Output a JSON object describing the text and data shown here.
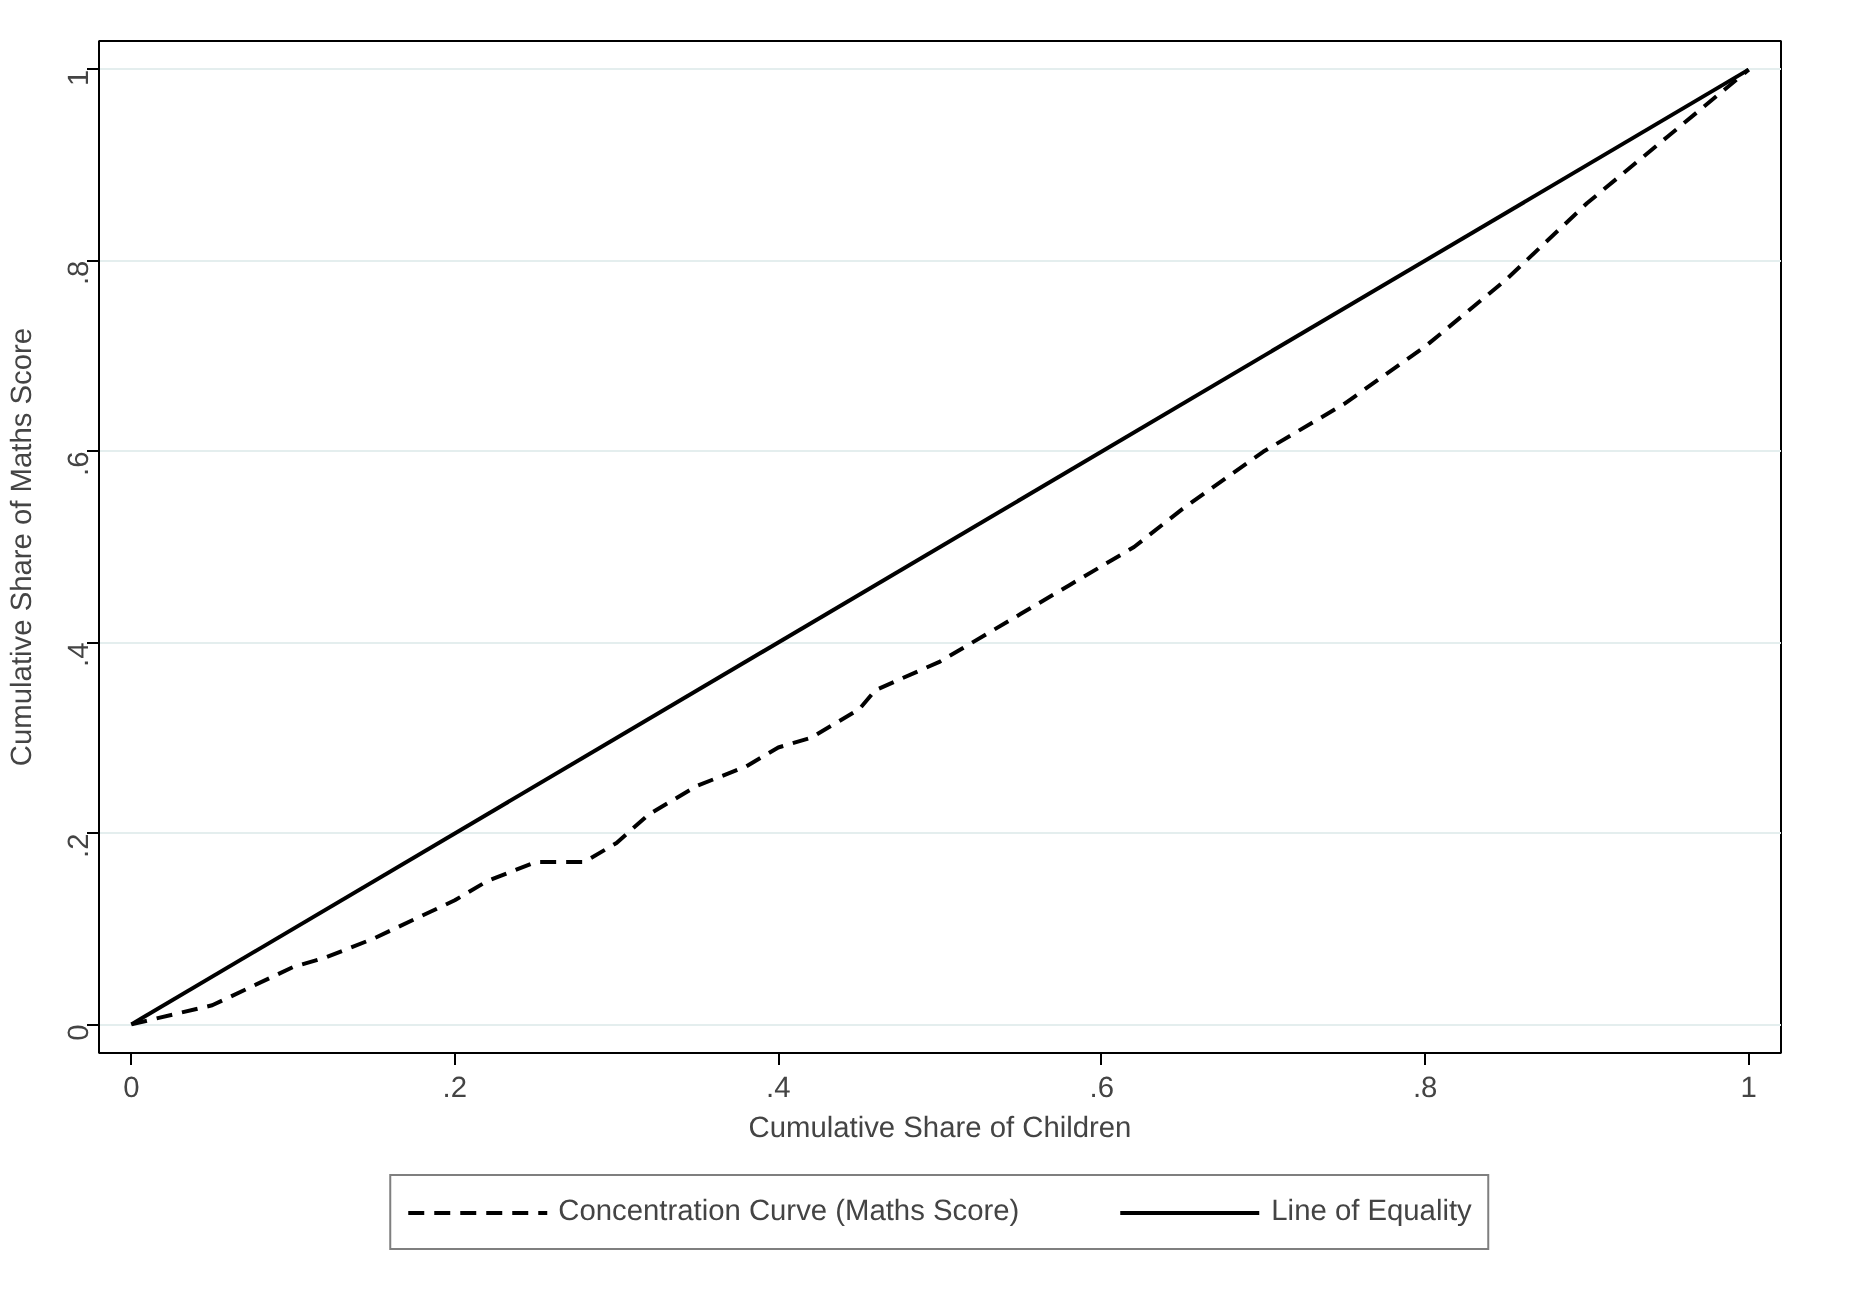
{
  "chart_data": {
    "type": "line",
    "xlabel": "Cumulative Share of Children",
    "ylabel": "Cumulative Share of Maths Score",
    "xlim": [
      -0.02,
      1.02
    ],
    "ylim": [
      -0.03,
      1.03
    ],
    "xticks": [
      0,
      {
        "value": 0.2,
        "label": ".2"
      },
      {
        "value": 0.4,
        "label": ".4"
      },
      {
        "value": 0.6,
        "label": ".6"
      },
      {
        "value": 0.8,
        "label": ".8"
      },
      1
    ],
    "yticks": [
      0,
      {
        "value": 0.2,
        "label": ".2"
      },
      {
        "value": 0.4,
        "label": ".4"
      },
      {
        "value": 0.6,
        "label": ".6"
      },
      {
        "value": 0.8,
        "label": ".8"
      },
      1
    ],
    "grid": "y",
    "legend": "bottom",
    "series": [
      {
        "name": "Concentration Curve (Maths Score)",
        "color": "#000000",
        "line_style": "dashed",
        "x": [
          0,
          0.05,
          0.1,
          0.12,
          0.15,
          0.2,
          0.22,
          0.25,
          0.28,
          0.3,
          0.32,
          0.35,
          0.38,
          0.4,
          0.42,
          0.45,
          0.46,
          0.5,
          0.55,
          0.58,
          0.6,
          0.62,
          0.65,
          0.7,
          0.72,
          0.75,
          0.8,
          0.85,
          0.9,
          0.95,
          1
        ],
        "values": [
          0,
          0.02,
          0.06,
          0.07,
          0.09,
          0.13,
          0.15,
          0.17,
          0.17,
          0.19,
          0.22,
          0.25,
          0.27,
          0.29,
          0.3,
          0.33,
          0.35,
          0.38,
          0.43,
          0.46,
          0.48,
          0.5,
          0.54,
          0.6,
          0.62,
          0.65,
          0.71,
          0.78,
          0.86,
          0.93,
          1
        ]
      },
      {
        "name": "Line of Equality",
        "color": "#000000",
        "line_style": "solid",
        "x": [
          0,
          1
        ],
        "values": [
          0,
          1
        ]
      }
    ]
  }
}
